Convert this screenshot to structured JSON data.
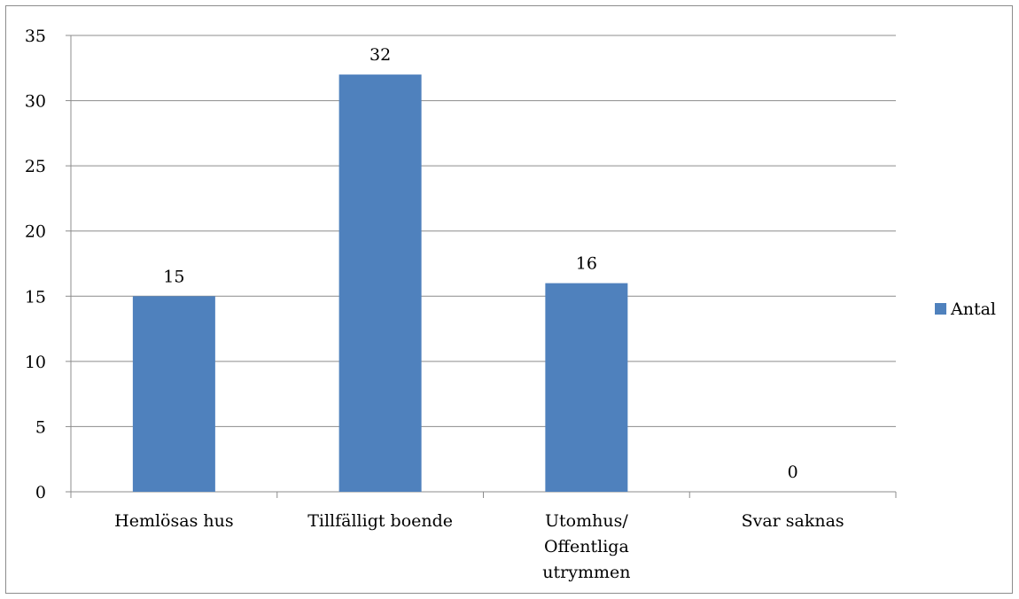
{
  "chart_data": {
    "type": "bar",
    "categories": [
      [
        "Hemlösas hus"
      ],
      [
        "Tillfälligt boende"
      ],
      [
        "Utomhus/",
        "Offentliga",
        "utrymmen"
      ],
      [
        "Svar saknas"
      ]
    ],
    "series": [
      {
        "name": "Antal",
        "values": [
          15,
          32,
          16,
          0
        ],
        "color": "#4f81bd"
      }
    ],
    "data_labels": [
      "15",
      "32",
      "16",
      "0"
    ],
    "yticks": [
      0,
      5,
      10,
      15,
      20,
      25,
      30,
      35
    ],
    "ylim": [
      0,
      35
    ],
    "grid": true,
    "legend_position": "right",
    "title": "",
    "xlabel": "",
    "ylabel": ""
  }
}
